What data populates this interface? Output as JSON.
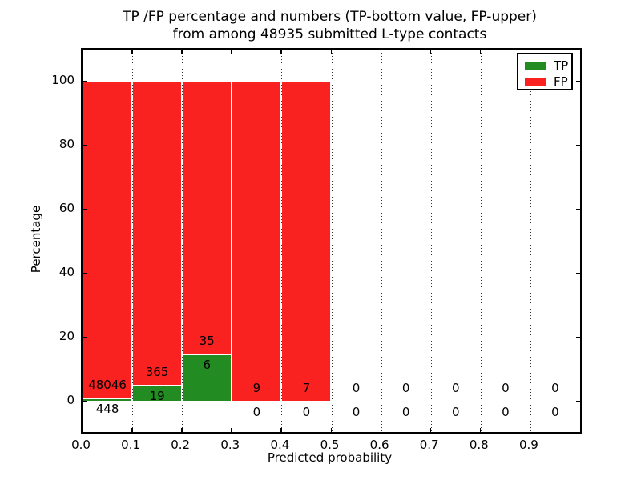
{
  "figure": {
    "title_line1": "TP /FP percentage and numbers (TP-bottom value, FP-upper)",
    "title_line2": "from among 48935 submitted L-type contacts"
  },
  "chart_data": {
    "type": "bar",
    "stacked": true,
    "title": "TP /FP percentage and numbers (TP-bottom value, FP-upper) from among 48935 submitted L-type contacts",
    "xlabel": "Predicted probability",
    "ylabel": "Percentage",
    "total_submitted_contacts": 48935,
    "bin_edges": [
      0.0,
      0.1,
      0.2,
      0.3,
      0.4,
      0.5,
      0.6,
      0.7,
      0.8,
      0.9,
      1.0
    ],
    "series": [
      {
        "name": "TP",
        "color": "#228b22",
        "counts": [
          448,
          19,
          6,
          0,
          0,
          0,
          0,
          0,
          0,
          0
        ]
      },
      {
        "name": "FP",
        "color": "#fa2121",
        "counts": [
          48046,
          365,
          35,
          9,
          7,
          0,
          0,
          0,
          0,
          0
        ]
      }
    ],
    "bar_unit": "percent_of_bin_total",
    "tp_percent_per_bin": [
      0.92,
      4.95,
      14.63,
      0,
      0,
      0,
      0,
      0,
      0,
      0
    ],
    "fp_percent_per_bin": [
      99.08,
      95.05,
      85.37,
      100,
      100,
      0,
      0,
      0,
      0,
      0
    ],
    "xlim": [
      0.0,
      1.0
    ],
    "ylim": [
      -9.5,
      110
    ],
    "yticks": [
      0,
      20,
      40,
      60,
      80,
      100
    ],
    "ytick_labels": [
      "0",
      "20",
      "40",
      "60",
      "80",
      "100"
    ],
    "xticks": [
      0.0,
      0.1,
      0.2,
      0.3,
      0.4,
      0.5,
      0.6,
      0.7,
      0.8,
      0.9
    ],
    "xtick_labels": [
      "0.0",
      "0.1",
      "0.2",
      "0.3",
      "0.4",
      "0.5",
      "0.6",
      "0.7",
      "0.8",
      "0.9"
    ],
    "grid": {
      "style": "dotted",
      "color": "#000000",
      "drawn_over_bars": true
    },
    "legend": {
      "position": "upper right",
      "items": [
        {
          "label": "TP",
          "color": "#228b22"
        },
        {
          "label": "FP",
          "color": "#fa2121"
        }
      ]
    }
  }
}
